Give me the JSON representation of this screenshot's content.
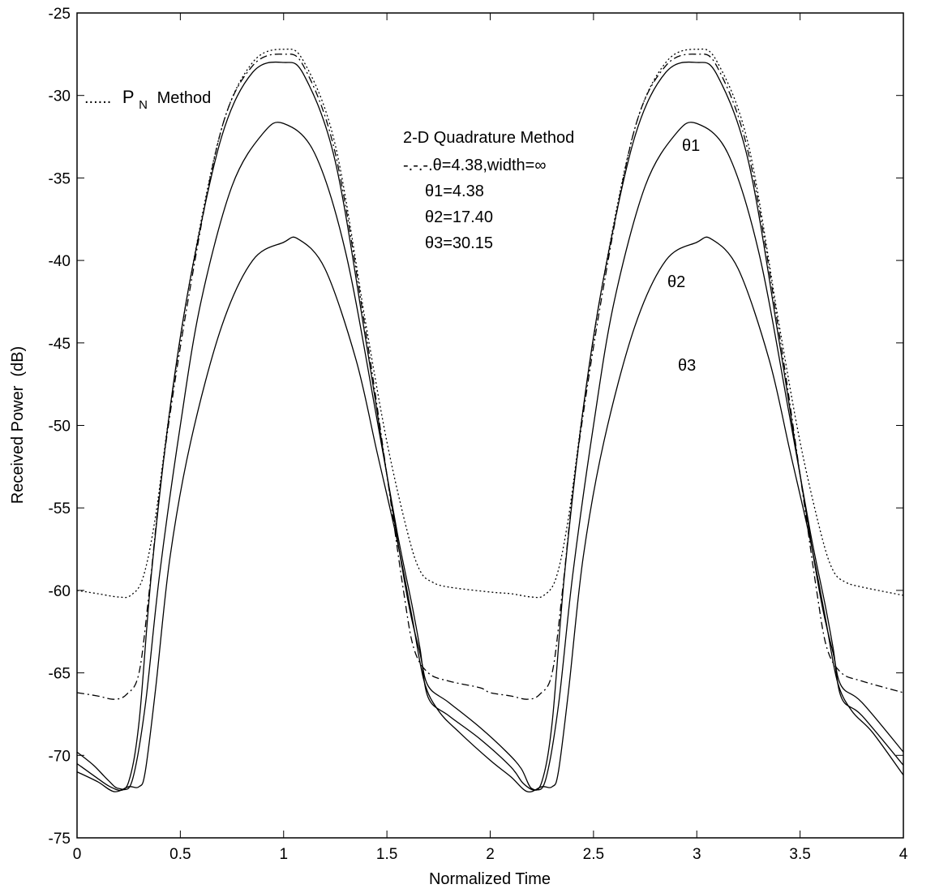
{
  "chart_data": {
    "type": "line",
    "title": "",
    "xlabel": "Normalized Time",
    "ylabel": "Received Power  (dB)",
    "xlim": [
      0,
      4
    ],
    "ylim": [
      -75,
      -25
    ],
    "xticks": [
      0,
      0.5,
      1,
      1.5,
      2,
      2.5,
      3,
      3.5,
      4
    ],
    "xtick_labels": [
      "0",
      "0.5",
      "1",
      "1.5",
      "2",
      "2.5",
      "3",
      "3.5",
      "4"
    ],
    "yticks": [
      -25,
      -30,
      -35,
      -40,
      -45,
      -50,
      -55,
      -60,
      -65,
      -70,
      -75
    ],
    "ytick_labels": [
      "-25",
      "-30",
      "-35",
      "-40",
      "-45",
      "-50",
      "-55",
      "-60",
      "-65",
      "-70",
      "-75"
    ],
    "grid": false,
    "legend": {
      "pn_prefix": "......",
      "pn_main": "P",
      "pn_sub": "N",
      "pn_suffix": "Method",
      "quad_title": "2-D Quadrature Method",
      "quad_lines": [
        "-.-.-.θ=4.38,width=∞",
        "θ1=4.38",
        "θ2=17.40",
        "θ3=30.15"
      ]
    },
    "curve_labels": {
      "theta1": "θ1",
      "theta2": "θ2",
      "theta3": "θ3"
    },
    "series": [
      {
        "style": "dotted",
        "x": [
          0,
          0.1,
          0.2,
          0.26,
          0.32,
          0.38,
          0.45,
          0.55,
          0.7,
          0.85,
          1.0,
          1.1,
          1.25,
          1.4,
          1.5,
          1.6,
          1.66,
          1.72,
          1.8,
          2.0,
          2.1,
          2.2,
          2.26,
          2.32,
          2.38,
          2.45,
          2.55,
          2.7,
          2.85,
          3.0,
          3.1,
          3.25,
          3.4,
          3.5,
          3.6,
          3.66,
          3.72,
          3.8,
          4.0
        ],
        "y": [
          -60,
          -60.2,
          -60.4,
          -60.3,
          -59.2,
          -55.5,
          -49,
          -41,
          -32,
          -28,
          -27.2,
          -28,
          -33,
          -44,
          -51,
          -56.5,
          -58.8,
          -59.5,
          -59.8,
          -60.1,
          -60.2,
          -60.4,
          -60.3,
          -59.2,
          -55.5,
          -49,
          -41,
          -32,
          -28,
          -27.2,
          -28,
          -33,
          -44,
          -51,
          -56.5,
          -58.8,
          -59.5,
          -59.8,
          -60.3
        ]
      },
      {
        "style": "dashdot",
        "x": [
          0,
          0.1,
          0.18,
          0.24,
          0.3,
          0.35,
          0.42,
          0.55,
          0.7,
          0.85,
          1.0,
          1.1,
          1.25,
          1.4,
          1.5,
          1.58,
          1.63,
          1.7,
          1.8,
          1.95,
          2.0,
          2.1,
          2.18,
          2.24,
          2.3,
          2.35,
          2.42,
          2.55,
          2.7,
          2.85,
          3.0,
          3.1,
          3.25,
          3.4,
          3.5,
          3.58,
          3.63,
          3.7,
          3.8,
          4.0
        ],
        "y": [
          -66.2,
          -66.4,
          -66.6,
          -66.3,
          -65,
          -60,
          -52,
          -41.5,
          -32,
          -28.2,
          -27.5,
          -28.3,
          -33.5,
          -44.5,
          -53,
          -60,
          -63.5,
          -65,
          -65.5,
          -65.9,
          -66.2,
          -66.4,
          -66.6,
          -66.3,
          -65,
          -60,
          -52,
          -41.5,
          -32,
          -28.2,
          -27.5,
          -28.3,
          -33.5,
          -44.5,
          -53,
          -60,
          -63.5,
          -65,
          -65.5,
          -66.2
        ]
      },
      {
        "style": "solid",
        "x": [
          0,
          0.08,
          0.15,
          0.2,
          0.25,
          0.3,
          0.36,
          0.45,
          0.55,
          0.7,
          0.85,
          1.0,
          1.1,
          1.25,
          1.4,
          1.5,
          1.6,
          1.66,
          1.7,
          1.8,
          1.95,
          2.08,
          2.15,
          2.2,
          2.25,
          2.3,
          2.36,
          2.45,
          2.55,
          2.7,
          2.85,
          3.0,
          3.1,
          3.25,
          3.4,
          3.5,
          3.6,
          3.66,
          3.7,
          3.8,
          4.0
        ],
        "y": [
          -69.8,
          -70.6,
          -71.5,
          -72,
          -71.6,
          -68,
          -59,
          -49,
          -41,
          -32.5,
          -28.6,
          -28,
          -28.8,
          -34,
          -45,
          -53,
          -60.5,
          -63.8,
          -65.8,
          -66.8,
          -68.3,
          -69.8,
          -70.8,
          -72,
          -71.6,
          -68,
          -59,
          -49,
          -41,
          -32.5,
          -28.6,
          -28,
          -28.8,
          -34,
          -45,
          -53,
          -60.5,
          -63.8,
          -65.8,
          -66.8,
          -69.8
        ]
      },
      {
        "style": "solid",
        "x": [
          0,
          0.1,
          0.16,
          0.22,
          0.27,
          0.33,
          0.4,
          0.5,
          0.6,
          0.75,
          0.9,
          1.0,
          1.15,
          1.3,
          1.45,
          1.55,
          1.62,
          1.66,
          1.7,
          1.8,
          1.95,
          2.1,
          2.16,
          2.22,
          2.27,
          2.33,
          2.4,
          2.5,
          2.6,
          2.75,
          2.9,
          3.0,
          3.15,
          3.3,
          3.45,
          3.55,
          3.62,
          3.66,
          3.7,
          3.8,
          4.0
        ],
        "y": [
          -70.5,
          -71.4,
          -71.9,
          -72.1,
          -71.4,
          -67,
          -59,
          -50,
          -42.5,
          -35.5,
          -32.3,
          -31.7,
          -33.5,
          -39.5,
          -49.5,
          -56.5,
          -60.8,
          -63.5,
          -66.5,
          -67.6,
          -69,
          -70.7,
          -71.7,
          -72.1,
          -71.4,
          -67,
          -59,
          -50,
          -42.5,
          -35.5,
          -32.3,
          -31.7,
          -33.5,
          -39.5,
          -49.5,
          -56.5,
          -60.8,
          -63.5,
          -66.5,
          -67.6,
          -70.6
        ]
      },
      {
        "style": "solid",
        "x": [
          0,
          0.1,
          0.18,
          0.25,
          0.3,
          0.33,
          0.38,
          0.45,
          0.55,
          0.7,
          0.85,
          1.0,
          1.07,
          1.2,
          1.35,
          1.45,
          1.55,
          1.62,
          1.68,
          1.75,
          1.85,
          2.0,
          2.1,
          2.18,
          2.25,
          2.3,
          2.33,
          2.38,
          2.45,
          2.55,
          2.7,
          2.85,
          3.0,
          3.07,
          3.2,
          3.35,
          3.45,
          3.55,
          3.62,
          3.68,
          3.75,
          3.85,
          4.0
        ],
        "y": [
          -71,
          -71.6,
          -72.2,
          -71.9,
          -71.9,
          -71,
          -66,
          -58,
          -51,
          -44,
          -40,
          -38.9,
          -38.7,
          -40.5,
          -46,
          -51.5,
          -57,
          -61.5,
          -65.5,
          -67.3,
          -68.6,
          -70.3,
          -71.3,
          -72.2,
          -71.9,
          -71.9,
          -71,
          -66,
          -58,
          -51,
          -44,
          -40,
          -38.9,
          -38.7,
          -40.5,
          -46,
          -51.5,
          -57,
          -61.5,
          -65.5,
          -67.3,
          -68.6,
          -71.2
        ]
      }
    ]
  }
}
